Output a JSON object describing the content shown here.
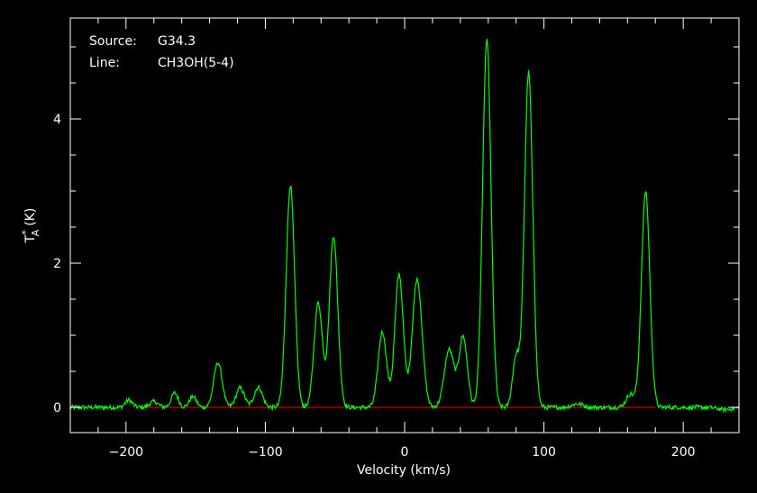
{
  "chart_data": {
    "type": "line",
    "annotations": [
      {
        "key": "Source:",
        "value": "G34.3"
      },
      {
        "key": "Line:",
        "value": "CH3OH(5-4)"
      }
    ],
    "xlabel": "Velocity (km/s)",
    "ylabel": "T_A* (K)",
    "ylabel_parts": {
      "T": "T",
      "sup": "*",
      "sub": "A",
      "unit": "(K)"
    },
    "xlim": [
      -240,
      240
    ],
    "ylim": [
      -0.35,
      5.4
    ],
    "xticks": [
      -200,
      -100,
      0,
      100,
      200
    ],
    "xtick_labels": [
      "−200",
      "−100",
      "0",
      "100",
      "200"
    ],
    "yticks": [
      0,
      2,
      4
    ],
    "ytick_labels": [
      "0",
      "2",
      "4"
    ],
    "grid": false,
    "baseline": {
      "y": 0,
      "color": "#ff0000"
    },
    "series": [
      {
        "color": "#00ff00",
        "baseline_noise": 0.03,
        "peaks": [
          {
            "x": -198,
            "y": 0.1,
            "w": 2.5
          },
          {
            "x": -180,
            "y": 0.08,
            "w": 3.0
          },
          {
            "x": -165,
            "y": 0.2,
            "w": 2.5
          },
          {
            "x": -152,
            "y": 0.15,
            "w": 2.5
          },
          {
            "x": -134,
            "y": 0.62,
            "w": 3.0
          },
          {
            "x": -118,
            "y": 0.27,
            "w": 3.0
          },
          {
            "x": -105,
            "y": 0.28,
            "w": 3.0
          },
          {
            "x": -82,
            "y": 3.08,
            "w": 3.0
          },
          {
            "x": -62,
            "y": 1.45,
            "w": 3.0
          },
          {
            "x": -51,
            "y": 2.38,
            "w": 3.0
          },
          {
            "x": -16,
            "y": 1.05,
            "w": 3.0
          },
          {
            "x": -4,
            "y": 1.85,
            "w": 3.0
          },
          {
            "x": 9,
            "y": 1.78,
            "w": 3.5
          },
          {
            "x": 32,
            "y": 0.8,
            "w": 3.5
          },
          {
            "x": 42,
            "y": 0.98,
            "w": 3.0
          },
          {
            "x": 59,
            "y": 5.1,
            "w": 3.0
          },
          {
            "x": 80,
            "y": 0.7,
            "w": 2.5
          },
          {
            "x": 89,
            "y": 4.65,
            "w": 3.0
          },
          {
            "x": 124,
            "y": 0.05,
            "w": 4.0
          },
          {
            "x": 162,
            "y": 0.18,
            "w": 3.0
          },
          {
            "x": 173,
            "y": 3.0,
            "w": 3.0
          },
          {
            "x": 230,
            "y": -0.03,
            "w": 5.0
          }
        ]
      }
    ]
  },
  "colors": {
    "background": "#000000",
    "axes": "#ffffff",
    "spectrum": "#00ff00",
    "baseline": "#ff0000"
  }
}
